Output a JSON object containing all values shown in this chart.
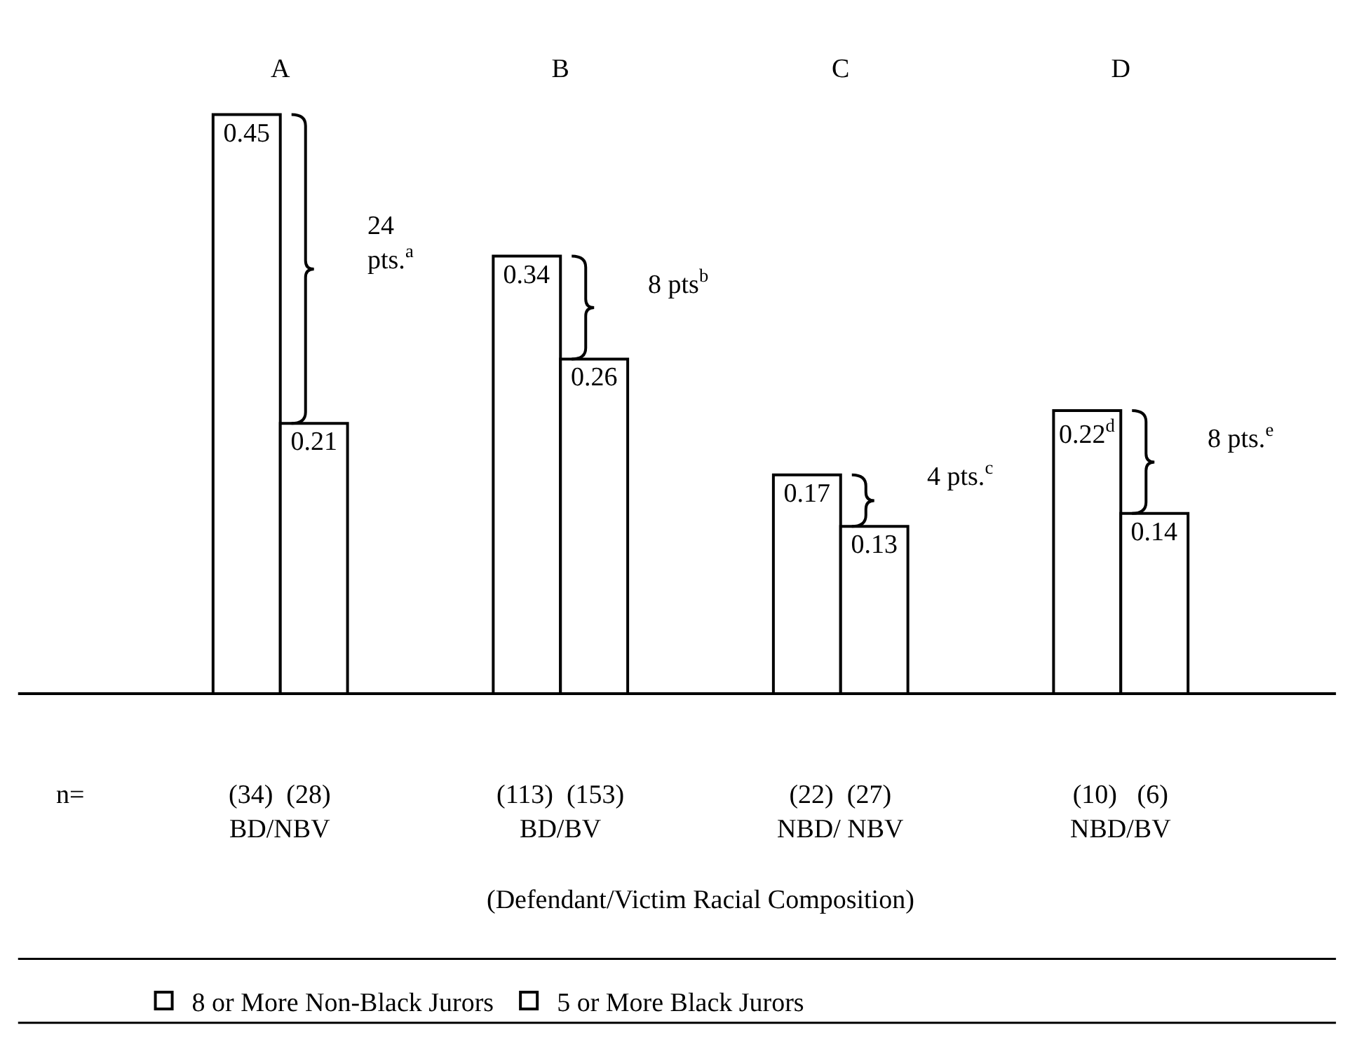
{
  "chart_data": {
    "type": "bar",
    "categories": [
      "A",
      "B",
      "C",
      "D"
    ],
    "series": [
      {
        "name": "8 or More Non-Black Jurors",
        "color": "#ffffff",
        "values": [
          0.45,
          0.34,
          0.17,
          0.22
        ],
        "value_labels": [
          "0.45",
          "0.34",
          "0.17",
          "0.22$^{d}$"
        ]
      },
      {
        "name": "5 or More Black Jurors",
        "color": "#ffffff",
        "values": [
          0.21,
          0.26,
          0.13,
          0.14
        ],
        "value_labels": [
          "0.21",
          "0.26",
          "0.13",
          "0.14"
        ]
      }
    ],
    "annotations": [
      "24\npts.$^{a}$",
      "8 pts$^{b}$",
      "4 pts.$^{c}$",
      "8 pts.$^{e}$",
      "n=",
      "(34)  (28)\nBD/NBV",
      "(113)  (153)\nBD/BV",
      "(22)  (27)\nNBD/ NBV",
      "(10)   (6)\nNBD/BV",
      "(Defendant/Victim Racial Composition)"
    ],
    "legend": "bottom",
    "grid": false
  }
}
